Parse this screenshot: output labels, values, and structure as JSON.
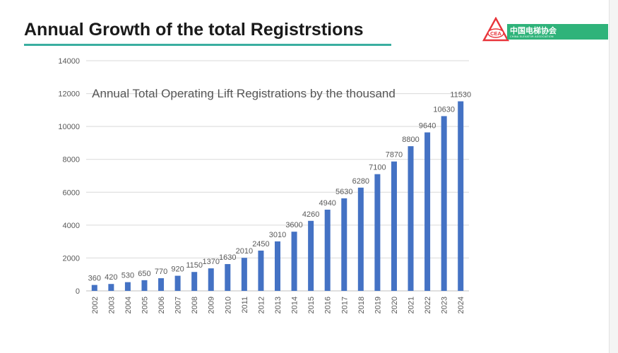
{
  "slide": {
    "title": "Annual Growth of the total Registrstions",
    "logo_cn": "中国电梯协会",
    "logo_en": "CHINA ELEVATOR ASSOCIATION",
    "logo_badge": "CEA"
  },
  "colors": {
    "bar": "#4472c4",
    "accent_rule": "#3aaea0",
    "logo_green": "#2fb37a",
    "logo_red": "#e8343a",
    "grid": "#d9d9d9",
    "axis_text": "#595959"
  },
  "chart_data": {
    "type": "bar",
    "title": "Annual Total Operating Lift Registrations by the thousand",
    "xlabel": "",
    "ylabel": "",
    "ylim": [
      0,
      14000
    ],
    "yticks": [
      0,
      2000,
      4000,
      6000,
      8000,
      10000,
      12000,
      14000
    ],
    "grid": true,
    "categories": [
      "2002",
      "2003",
      "2004",
      "2005",
      "2006",
      "2007",
      "2008",
      "2009",
      "2010",
      "2011",
      "2012",
      "2013",
      "2014",
      "2015",
      "2016",
      "2017",
      "2018",
      "2019",
      "2020",
      "2021",
      "2022",
      "2023",
      "2024"
    ],
    "values": [
      360,
      420,
      530,
      650,
      770,
      920,
      1150,
      1370,
      1630,
      2010,
      2450,
      3010,
      3600,
      4260,
      4940,
      5630,
      6280,
      7100,
      7870,
      8800,
      9640,
      10630,
      11530
    ]
  }
}
